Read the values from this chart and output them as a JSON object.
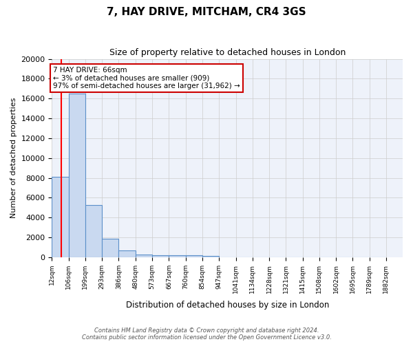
{
  "title1": "7, HAY DRIVE, MITCHAM, CR4 3GS",
  "title2": "Size of property relative to detached houses in London",
  "xlabel": "Distribution of detached houses by size in London",
  "ylabel": "Number of detached properties",
  "categories": [
    "12sqm",
    "106sqm",
    "199sqm",
    "293sqm",
    "386sqm",
    "480sqm",
    "573sqm",
    "667sqm",
    "760sqm",
    "854sqm",
    "947sqm",
    "1041sqm",
    "1134sqm",
    "1228sqm",
    "1321sqm",
    "1415sqm",
    "1508sqm",
    "1602sqm",
    "1695sqm",
    "1789sqm",
    "1882sqm"
  ],
  "bar_edges": [
    12,
    106,
    199,
    293,
    386,
    480,
    573,
    667,
    760,
    854,
    947,
    1041,
    1134,
    1228,
    1321,
    1415,
    1508,
    1602,
    1695,
    1789,
    1882
  ],
  "bar_heights": [
    8100,
    16500,
    5300,
    1850,
    700,
    310,
    230,
    190,
    190,
    160,
    0,
    0,
    0,
    0,
    0,
    0,
    0,
    0,
    0,
    0
  ],
  "bar_color": "#c9d9f0",
  "bar_edge_color": "#5b8fc9",
  "grid_color": "#cccccc",
  "bg_color": "#eef2fa",
  "redline_x": 66,
  "annotation_text": "7 HAY DRIVE: 66sqm\n← 3% of detached houses are smaller (909)\n97% of semi-detached houses are larger (31,962) →",
  "annotation_box_color": "#cc0000",
  "ylim": [
    0,
    20000
  ],
  "yticks": [
    0,
    2000,
    4000,
    6000,
    8000,
    10000,
    12000,
    14000,
    16000,
    18000,
    20000
  ],
  "footer1": "Contains HM Land Registry data © Crown copyright and database right 2024.",
  "footer2": "Contains public sector information licensed under the Open Government Licence v3.0."
}
